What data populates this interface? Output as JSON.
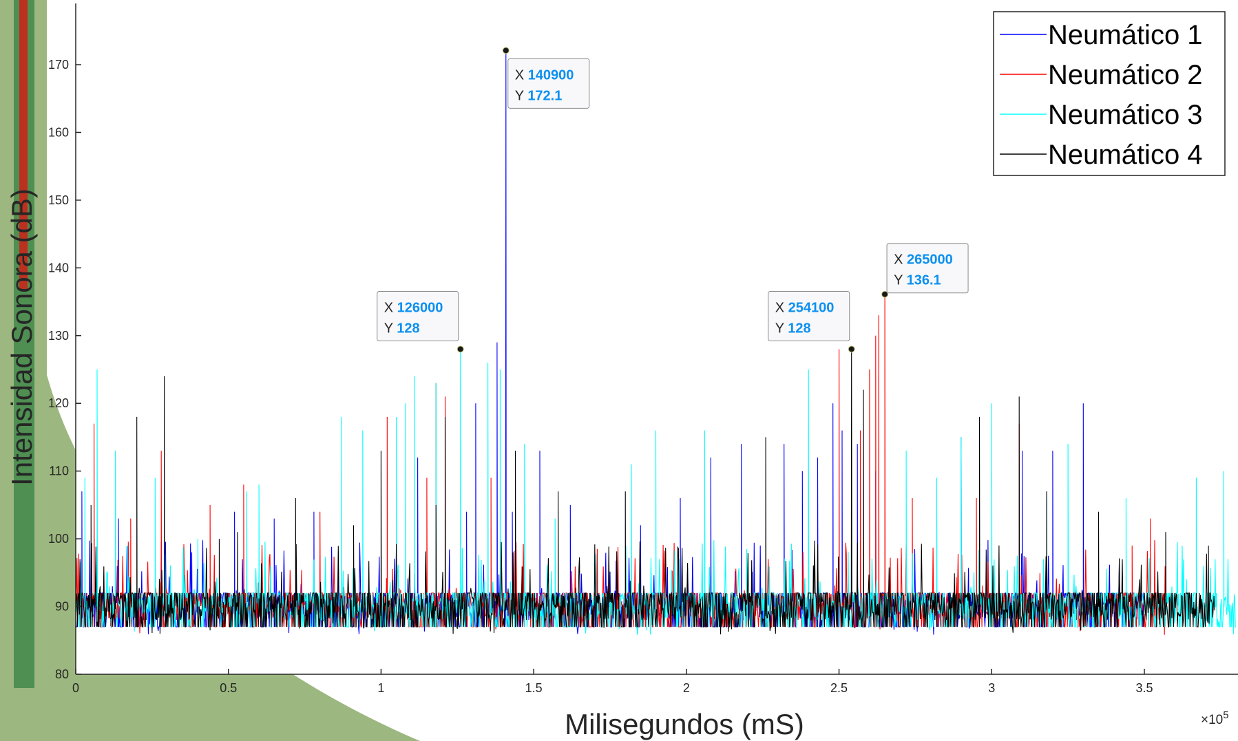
{
  "chart_data": {
    "type": "line",
    "xlabel": "Milisegundos (mS)",
    "ylabel": "Intensidad Sonora (dB)",
    "x_exponent_label": "×10",
    "x_exponent_power": "5",
    "xlim": [
      0,
      380000
    ],
    "ylim": [
      80,
      180
    ],
    "x_ticks": [
      0,
      50000,
      100000,
      150000,
      200000,
      250000,
      300000,
      350000
    ],
    "x_tick_labels": [
      "0",
      "0.5",
      "1",
      "1.5",
      "2",
      "2.5",
      "3",
      "3.5"
    ],
    "y_ticks": [
      80,
      90,
      100,
      110,
      120,
      130,
      140,
      150,
      160,
      170
    ],
    "y_tick_labels": [
      "80",
      "90",
      "100",
      "110",
      "120",
      "130",
      "140",
      "150",
      "160",
      "170"
    ],
    "grid": false,
    "legend_position": "top-right",
    "baseline": 90,
    "sample_step": 200,
    "series": [
      {
        "name": "Neumático 1",
        "color": "#0000ff",
        "spikes": [
          [
            2000,
            107
          ],
          [
            6000,
            100
          ],
          [
            14000,
            103
          ],
          [
            38000,
            98
          ],
          [
            52000,
            104
          ],
          [
            65000,
            103
          ],
          [
            78000,
            104
          ],
          [
            112000,
            112
          ],
          [
            128000,
            104
          ],
          [
            131000,
            120
          ],
          [
            138000,
            129
          ],
          [
            140900,
            172.1
          ],
          [
            143000,
            104
          ],
          [
            152000,
            113
          ],
          [
            162000,
            105
          ],
          [
            185000,
            102
          ],
          [
            198000,
            106
          ],
          [
            208000,
            112
          ],
          [
            218000,
            114
          ],
          [
            232000,
            114
          ],
          [
            238000,
            110
          ],
          [
            243000,
            112
          ],
          [
            248000,
            120
          ],
          [
            251000,
            116
          ],
          [
            256000,
            114
          ],
          [
            262000,
            110
          ],
          [
            290000,
            115
          ],
          [
            310000,
            113
          ],
          [
            320000,
            113
          ],
          [
            330000,
            120
          ]
        ],
        "end": 350000
      },
      {
        "name": "Neumático 2",
        "color": "#ff0000",
        "spikes": [
          [
            6000,
            117
          ],
          [
            18000,
            103
          ],
          [
            28000,
            113
          ],
          [
            44000,
            105
          ],
          [
            55000,
            108
          ],
          [
            80000,
            104
          ],
          [
            102000,
            118
          ],
          [
            115000,
            109
          ],
          [
            118000,
            123
          ],
          [
            121000,
            121
          ],
          [
            136000,
            109
          ],
          [
            250000,
            128
          ],
          [
            257000,
            116
          ],
          [
            260000,
            125
          ],
          [
            262000,
            130
          ],
          [
            263000,
            133
          ],
          [
            265000,
            136.1
          ],
          [
            274000,
            106
          ],
          [
            295000,
            106
          ],
          [
            309000,
            117
          ],
          [
            346000,
            99
          ],
          [
            352000,
            103
          ]
        ],
        "end": 357000
      },
      {
        "name": "Neumático 3",
        "color": "#00ffff",
        "spikes": [
          [
            3000,
            109
          ],
          [
            7000,
            125
          ],
          [
            13000,
            113
          ],
          [
            17000,
            99
          ],
          [
            26000,
            109
          ],
          [
            40000,
            100
          ],
          [
            56000,
            107
          ],
          [
            60000,
            108
          ],
          [
            87000,
            118
          ],
          [
            94000,
            116
          ],
          [
            105000,
            118
          ],
          [
            108000,
            120
          ],
          [
            111000,
            124
          ],
          [
            118000,
            123
          ],
          [
            126000,
            128
          ],
          [
            135000,
            126
          ],
          [
            139000,
            125
          ],
          [
            147000,
            114
          ],
          [
            157000,
            103
          ],
          [
            182000,
            111
          ],
          [
            190000,
            116
          ],
          [
            206000,
            116
          ],
          [
            240000,
            125
          ],
          [
            272000,
            113
          ],
          [
            282000,
            109
          ],
          [
            290000,
            115
          ],
          [
            300000,
            120
          ],
          [
            318000,
            106
          ],
          [
            325000,
            114
          ],
          [
            344000,
            106
          ],
          [
            367000,
            109
          ],
          [
            376000,
            110
          ]
        ],
        "end": 380000
      },
      {
        "name": "Neumático 4",
        "color": "#000000",
        "spikes": [
          [
            5000,
            105
          ],
          [
            20000,
            118
          ],
          [
            29000,
            124
          ],
          [
            47000,
            100
          ],
          [
            53000,
            101
          ],
          [
            72000,
            106
          ],
          [
            91000,
            102
          ],
          [
            100000,
            113
          ],
          [
            118000,
            105
          ],
          [
            121000,
            118
          ],
          [
            144000,
            113
          ],
          [
            158000,
            107
          ],
          [
            180000,
            107
          ],
          [
            226000,
            115
          ],
          [
            254100,
            128
          ],
          [
            258000,
            122
          ],
          [
            296000,
            118
          ],
          [
            309000,
            121
          ],
          [
            318000,
            107
          ],
          [
            335000,
            104
          ],
          [
            357000,
            101
          ],
          [
            371000,
            99
          ]
        ],
        "end": 373000
      }
    ],
    "annotations": [
      {
        "x_label": "X",
        "y_label": "Y",
        "x": 126000,
        "y": 128,
        "x_text": "126000",
        "y_text": "128",
        "placement": "above-left"
      },
      {
        "x_label": "X",
        "y_label": "Y",
        "x": 140900,
        "y": 172.1,
        "x_text": "140900",
        "y_text": "172.1",
        "placement": "below-right"
      },
      {
        "x_label": "X",
        "y_label": "Y",
        "x": 254100,
        "y": 128,
        "x_text": "254100",
        "y_text": "128",
        "placement": "above-left"
      },
      {
        "x_label": "X",
        "y_label": "Y",
        "x": 265000,
        "y": 136.1,
        "x_text": "265000",
        "y_text": "136.1",
        "placement": "above-right"
      }
    ]
  }
}
